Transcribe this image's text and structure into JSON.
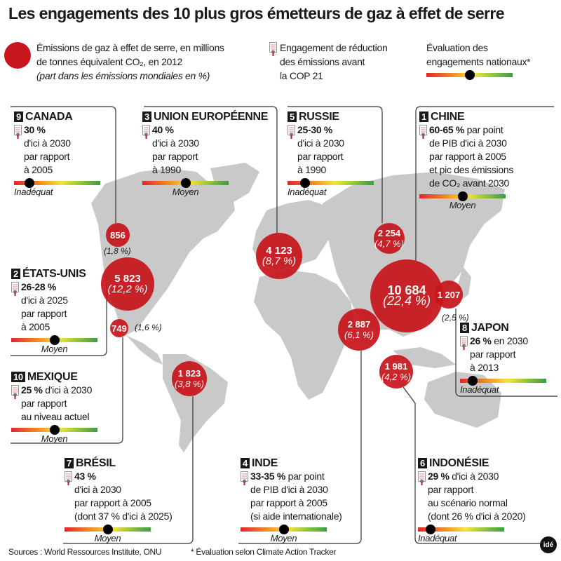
{
  "title": "Les engagements des 10 plus gros émetteurs de gaz à effet de serre",
  "legend": {
    "emissions_line1": "Émissions de gaz à effet de serre, en millions",
    "emissions_line2": "de tonnes équivalent CO₂, en 2012",
    "emissions_line3": "(part dans les émissions mondiales en %)",
    "engagement": "Engagement de réduction\ndes émissions avant\nla COP 21",
    "evaluation": "Évaluation des\nengagements nationaux*",
    "evaluation_value": 0.5
  },
  "colors": {
    "bubble": "#c8161d",
    "map": "#c9c9c9",
    "gauge_low": "#e3262b",
    "gauge_mid": "#f5e43a",
    "gauge_high": "#3d9a46"
  },
  "countries": [
    {
      "id": "ca",
      "rank": "9",
      "name": "CANADA",
      "bold": "30 %",
      "rest": "\nd'ici à 2030\npar rapport\nà 2005",
      "rating": "Inadéquat",
      "rating_value": 0.18
    },
    {
      "id": "ue",
      "rank": "3",
      "name": "UNION EUROPÉENNE",
      "bold": "40 %",
      "rest": "\nd'ici à 2030\npar rapport\nà 1990",
      "rating": "Moyen",
      "rating_value": 0.5
    },
    {
      "id": "ru",
      "rank": "5",
      "name": "RUSSIE",
      "bold": "25-30 %",
      "rest": "\nd'ici à 2030\npar rapport\nà 1990",
      "rating": "Inadéquat",
      "rating_value": 0.2
    },
    {
      "id": "cn",
      "rank": "1",
      "name": "CHINE",
      "bold": "60-65 %",
      "rest": " par point\nde PIB d'ici à 2030\npar rapport à 2005\net pic des émissions\nde CO₂ avant 2030",
      "rating": "Moyen",
      "rating_value": 0.5
    },
    {
      "id": "us",
      "rank": "2",
      "name": "ÉTATS-UNIS",
      "bold": "26-28 %",
      "rest": "\nd'ici à 2025\npar rapport\nà 2005",
      "rating": "Moyen",
      "rating_value": 0.5
    },
    {
      "id": "jp",
      "rank": "8",
      "name": "JAPON",
      "bold": "26 %",
      "rest": " en 2030\npar rapport\nà 2013",
      "rating": "Inadéquat",
      "rating_value": 0.15
    },
    {
      "id": "mx",
      "rank": "10",
      "name": "MEXIQUE",
      "bold": "25 %",
      "rest": " d'ici à 2030\npar rapport\nau niveau actuel",
      "rating": "Moyen",
      "rating_value": 0.5
    },
    {
      "id": "br",
      "rank": "7",
      "name": "BRÉSIL",
      "bold": "43 %",
      "rest": "\nd'ici à 2030\npar rapport à 2005\n(dont 37 % d'ici à 2025)",
      "rating": "Moyen",
      "rating_value": 0.5
    },
    {
      "id": "in",
      "rank": "4",
      "name": "INDE",
      "bold": "33-35 %",
      "rest": " par point\nde PIB d'ici à 2030\npar rapport à 2005\n(si aide internationale)",
      "rating": "Moyen",
      "rating_value": 0.5
    },
    {
      "id": "id",
      "rank": "6",
      "name": "INDONÉSIE",
      "bold": "29 %",
      "rest": " d'ici à 2030\npar rapport\nau scénario normal\n(dont 26 % d'ici à 2020)",
      "rating": "Inadéquat",
      "rating_value": 0.15
    }
  ],
  "bubbles": [
    {
      "id": "cn",
      "value": "10 684",
      "share": "(22,4 %)",
      "emissions": 10684
    },
    {
      "id": "us",
      "value": "5 823",
      "share": "(12,2 %)",
      "emissions": 5823
    },
    {
      "id": "ue",
      "value": "4 123",
      "share": "(8,7 %)",
      "emissions": 4123
    },
    {
      "id": "in",
      "value": "2 887",
      "share": "(6,1 %)",
      "emissions": 2887
    },
    {
      "id": "ru",
      "value": "2 254",
      "share": "(4,7 %)",
      "emissions": 2254
    },
    {
      "id": "id",
      "value": "1 981",
      "share": "(4,2 %)",
      "emissions": 1981
    },
    {
      "id": "br",
      "value": "1 823",
      "share": "(3,8 %)",
      "emissions": 1823
    },
    {
      "id": "jp",
      "value": "1 207",
      "share": "(2,5 %)",
      "emissions": 1207
    },
    {
      "id": "ca",
      "value": "856",
      "share": "(1,8 %)",
      "emissions": 856
    },
    {
      "id": "mx",
      "value": "749",
      "share": "(1,6 %)",
      "emissions": 749
    }
  ],
  "footer": {
    "sources": "Sources : World Ressources Institute, ONU",
    "note": "* Évaluation selon Climate Action Tracker",
    "logo": "idé"
  }
}
